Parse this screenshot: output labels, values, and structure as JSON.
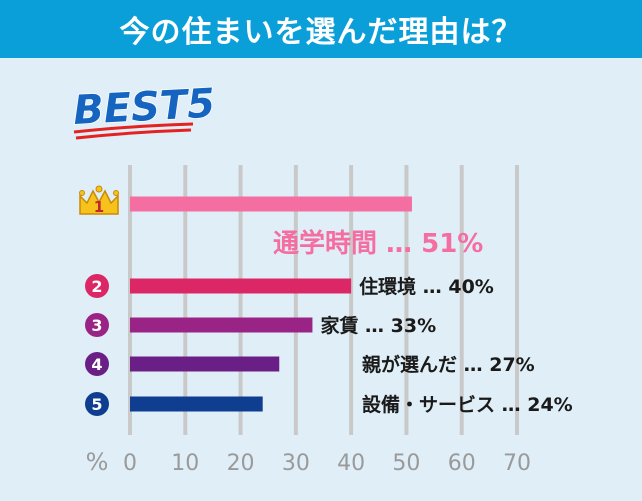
{
  "header": {
    "title": "今の住まいを選んだ理由は？"
  },
  "badge": {
    "text": "BEST5"
  },
  "colors": {
    "header_bg": "#0b9fd9",
    "panel_bg": "#e0eff7",
    "grid": "#c9c9c9",
    "axis_text": "#9a9a9a",
    "rank1": "#f46ea2",
    "rank2": "#db2765",
    "rank3": "#9a2386",
    "rank4": "#6a1f86",
    "rank5": "#0f3d8f",
    "badge": "#1565c0",
    "badge_underline": "#e52222"
  },
  "chart_data": {
    "type": "bar",
    "orientation": "horizontal",
    "title": "今の住まいを選んだ理由は？",
    "categories": [
      "通学時間",
      "住環境",
      "家賃",
      "親が選んだ",
      "設備・サービス"
    ],
    "values": [
      51,
      40,
      33,
      27,
      24
    ],
    "ranks": [
      "1",
      "2",
      "3",
      "4",
      "5"
    ],
    "label_separator": "…",
    "unit_suffix": "%",
    "xunit": "%",
    "xlim": [
      0,
      70
    ],
    "xticks": [
      "0",
      "10",
      "20",
      "30",
      "40",
      "50",
      "60",
      "70"
    ],
    "grid": true
  }
}
